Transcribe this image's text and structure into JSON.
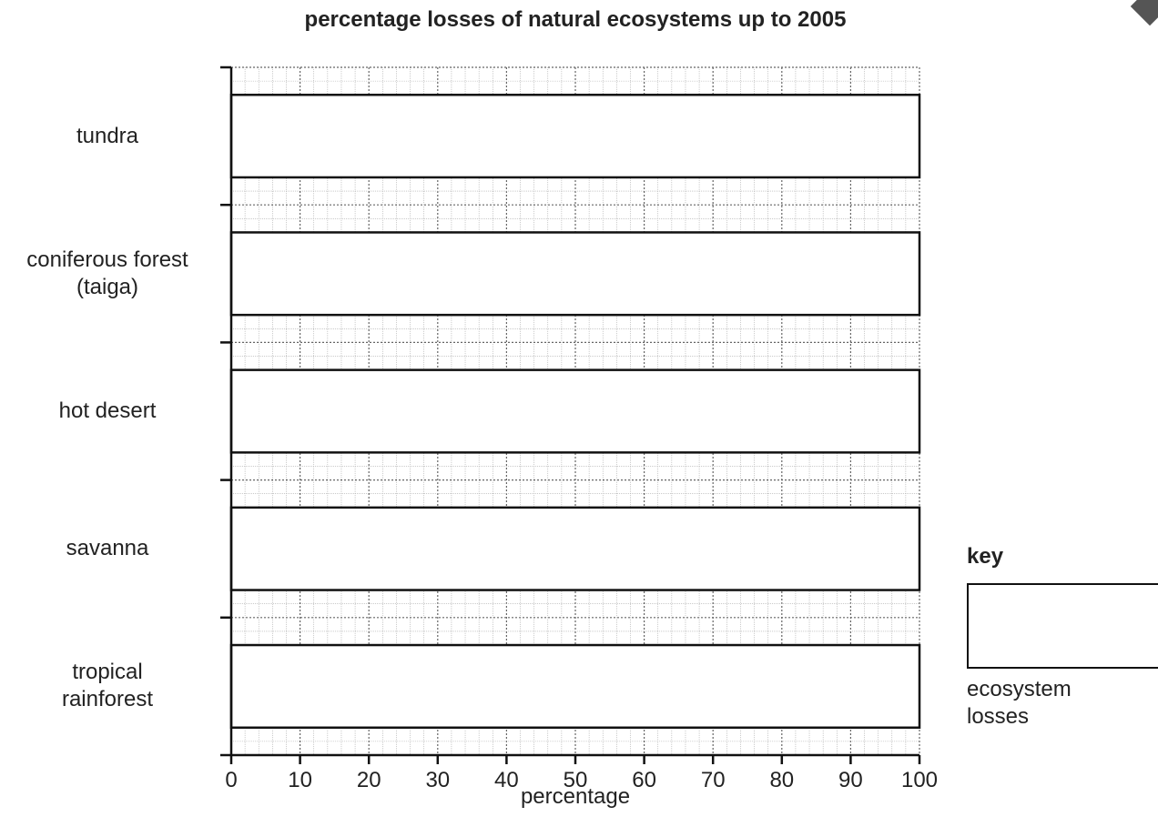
{
  "chart_data": {
    "type": "bar",
    "orientation": "horizontal",
    "title": "percentage losses of natural ecosystems up to 2005",
    "xlabel": "percentage",
    "ylabel": "",
    "xlim": [
      0,
      100
    ],
    "x_ticks": [
      "0",
      "10",
      "20",
      "30",
      "40",
      "50",
      "60",
      "70",
      "80",
      "90",
      "100"
    ],
    "categories": [
      [
        "tundra"
      ],
      [
        "coniferous forest",
        "(taiga)"
      ],
      [
        "hot desert"
      ],
      [
        "savanna"
      ],
      [
        "tropical",
        "rainforest"
      ]
    ],
    "values": [
      100,
      100,
      100,
      100,
      100
    ],
    "grid": "fine graph-paper grid",
    "legend": {
      "position": "right",
      "title": "key",
      "entries": [
        {
          "label": [
            "ecosystem",
            "losses"
          ],
          "fill": "#ffffff"
        }
      ]
    }
  }
}
